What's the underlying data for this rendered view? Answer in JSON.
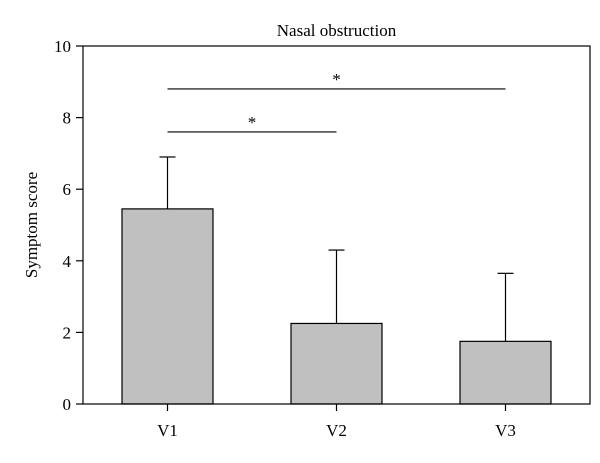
{
  "chart_data": {
    "type": "bar",
    "title": "Nasal obstruction",
    "xlabel": "",
    "ylabel": "Symptom score",
    "categories": [
      "V1",
      "V2",
      "V3"
    ],
    "values": [
      5.45,
      2.25,
      1.75
    ],
    "error_upper": [
      6.9,
      4.3,
      3.65
    ],
    "ylim": [
      0,
      10
    ],
    "yticks": [
      0,
      2,
      4,
      6,
      8,
      10
    ],
    "grid": false,
    "bar_color": "#c0c0c0",
    "significance": [
      {
        "from": "V1",
        "to": "V2",
        "y": 7.6,
        "label": "*"
      },
      {
        "from": "V1",
        "to": "V3",
        "y": 8.8,
        "label": "*"
      }
    ]
  }
}
